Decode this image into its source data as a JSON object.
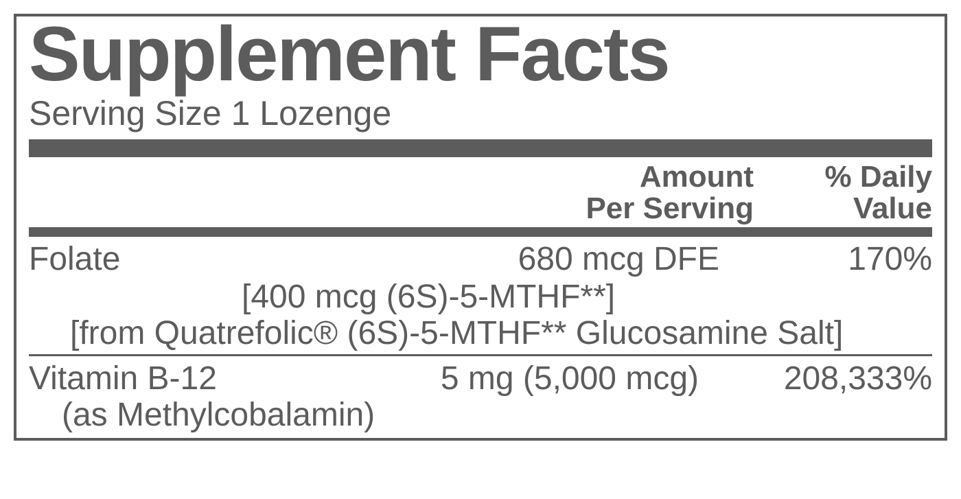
{
  "title": "Supplement Facts",
  "serving": "Serving Size 1 Lozenge",
  "headers": {
    "amount_l1": "Amount",
    "amount_l2": "Per Serving",
    "dv_l1": "% Daily",
    "dv_l2": "Value"
  },
  "folate": {
    "name": "Folate",
    "amount": "680 mcg DFE",
    "dv": "170%",
    "sub1": "[400 mcg (6S)-5-MTHF**]",
    "sub2": "[from Quatrefolic® (6S)-5-MTHF** Glucosamine Salt]"
  },
  "b12": {
    "name": "Vitamin B-12",
    "amount": "5 mg (5,000 mcg)",
    "dv": "208,333%",
    "sub": "(as Methylcobalamin)"
  },
  "colors": {
    "ink": "#5c5c5c",
    "bg": "#ffffff"
  }
}
